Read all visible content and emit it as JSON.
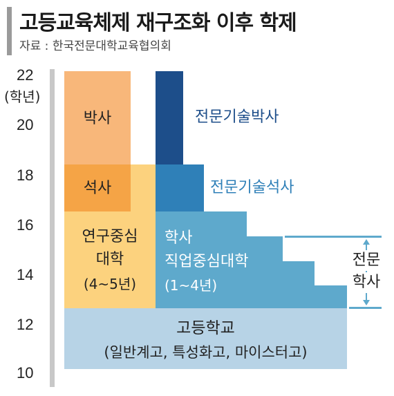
{
  "header": {
    "title": "고등교육체제 재구조화 이후 학제",
    "source": "자료 : 한국전문대학교육협의회"
  },
  "y_axis": {
    "unit": "(학년)",
    "ticks": [
      "22",
      "20",
      "18",
      "16",
      "14",
      "12",
      "10"
    ]
  },
  "blocks": {
    "phd": "박사",
    "masters": "석사",
    "research_univ_line1": "연구중심",
    "research_univ_line2": "대학",
    "research_univ_years": "(4~5년)",
    "prof_phd": "전문기술박사",
    "prof_masters": "전문기술석사",
    "vocational_line1": "학사",
    "vocational_line2": "직업중심대학",
    "vocational_years": "(1~4년)",
    "specialist_line1": "전문",
    "specialist_line2": "학사",
    "high_school": "고등학교",
    "high_school_types": "(일반계고, 특성화고, 마이스터고)"
  },
  "colors": {
    "phd": "#f8b77a",
    "masters": "#f5a446",
    "research_univ": "#fcd27e",
    "prof_phd": "#1d4e8a",
    "prof_masters": "#2f80b8",
    "vocational": "#5ea9cc",
    "high_school": "#b7d3e6",
    "label_dark_blue": "#1d4e8a",
    "label_mid_blue": "#2f80b8"
  }
}
